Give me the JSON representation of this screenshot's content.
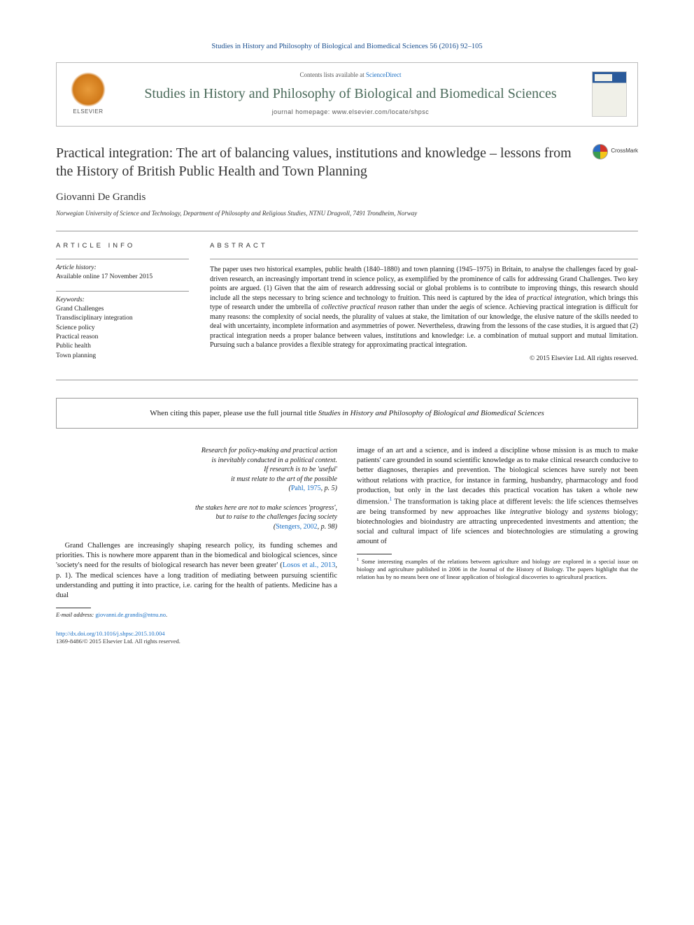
{
  "header": {
    "citation_line": "Studies in History and Philosophy of Biological and Biomedical Sciences 56 (2016) 92–105",
    "contents_prefix": "Contents lists available at ",
    "contents_link": "ScienceDirect",
    "journal_name": "Studies in History and Philosophy of Biological and Biomedical Sciences",
    "homepage_prefix": "journal homepage: ",
    "homepage_url": "www.elsevier.com/locate/shpsc",
    "elsevier_label": "ELSEVIER",
    "crossmark_label": "CrossMark"
  },
  "article": {
    "title": "Practical integration: The art of balancing values, institutions and knowledge – lessons from the History of British Public Health and Town Planning",
    "author": "Giovanni De Grandis",
    "affiliation": "Norwegian University of Science and Technology, Department of Philosophy and Religious Studies, NTNU Dragvoll, 7491 Trondheim, Norway"
  },
  "info": {
    "heading": "ARTICLE INFO",
    "history_label": "Article history:",
    "history_text": "Available online 17 November 2015",
    "keywords_label": "Keywords:",
    "keywords": [
      "Grand Challenges",
      "Transdisciplinary integration",
      "Science policy",
      "Practical reason",
      "Public health",
      "Town planning"
    ]
  },
  "abstract": {
    "heading": "ABSTRACT",
    "text_pre": "The paper uses two historical examples, public health (1840–1880) and town planning (1945–1975) in Britain, to analyse the challenges faced by goal-driven research, an increasingly important trend in science policy, as exemplified by the prominence of calls for addressing Grand Challenges. Two key points are argued. (1) Given that the aim of research addressing social or global problems is to contribute to improving things, this research should include all the steps necessary to bring science and technology to fruition. This need is captured by the idea of ",
    "ital1": "practical integration",
    "text_mid1": ", which brings this type of research under the umbrella of ",
    "ital2": "collective practical reason",
    "text_mid2": " rather than under the aegis of science. Achieving practical integration is difficult for many reasons: the complexity of social needs, the plurality of values at stake, the limitation of our knowledge, the elusive nature of the skills needed to deal with uncertainty, incomplete information and asymmetries of power. Nevertheless, drawing from the lessons of the case studies, it is argued that (2) practical integration needs a proper balance between values, institutions and knowledge: i.e. a combination of mutual support and mutual limitation. Pursuing such a balance provides a flexible strategy for approximating practical integration.",
    "copyright": "© 2015 Elsevier Ltd. All rights reserved."
  },
  "citation_notice": {
    "prefix": "When citing this paper, please use the full journal title ",
    "journal": "Studies in History and Philosophy of Biological and Biomedical Sciences"
  },
  "epigraphs": [
    {
      "lines": [
        "Research for policy-making and practical action",
        "is inevitably conducted in a political context.",
        "If research is to be 'useful'",
        "it must relate to the art of the possible"
      ],
      "cite_pre": "(",
      "cite_link": "Pahl, 1975",
      "cite_post": ", p. 5)"
    },
    {
      "lines": [
        "the stakes here are not to make sciences 'progress',",
        "but to raise to the challenges facing society"
      ],
      "cite_pre": "(",
      "cite_link": "Stengers, 2002",
      "cite_post": ", p. 98)"
    }
  ],
  "body": {
    "col1_p1_pre": "Grand Challenges are increasingly shaping research policy, its funding schemes and priorities. This is nowhere more apparent than in the biomedical and biological sciences, since 'society's need for the results of biological research has never been greater' (",
    "col1_p1_cite": "Losos et al., 2013",
    "col1_p1_post": ", p. 1). The medical sciences have a long tradition of mediating between pursuing scientific understanding and putting it into practice, i.e. caring for the health of patients. Medicine has a dual",
    "col2_p1_pre": "image of an art and a science, and is indeed a discipline whose mission is as much to make patients' care grounded in sound scientific knowledge as to make clinical research conducive to better diagnoses, therapies and prevention. The biological sciences have surely not been without relations with practice, for instance in farming, husbandry, pharmacology and food production, but only in the last decades this practical vocation has taken a whole new dimension.",
    "col2_p1_sup": "1",
    "col2_p1_mid": " The transformation is taking place at different levels: the life sciences themselves are being transformed by new approaches like ",
    "col2_p1_it1": "integrative",
    "col2_p1_mid2": " biology and ",
    "col2_p1_it2": "systems",
    "col2_p1_post": " biology; biotechnologies and bioindustry are attracting unprecedented investments and attention; the social and cultural impact of life sciences and biotechnologies are stimulating a growing amount of"
  },
  "footnotes": {
    "email_label": "E-mail address:",
    "email": "giovanni.de.grandis@ntnu.no",
    "note1_marker": "1",
    "note1_text": "Some interesting examples of the relations between agriculture and biology are explored in a special issue on biology and agriculture published in 2006 in the Journal of the History of Biology. The papers highlight that the relation has by no means been one of linear application of biological discoveries to agricultural practices."
  },
  "footer": {
    "doi": "http://dx.doi.org/10.1016/j.shpsc.2015.10.004",
    "issn_copyright": "1369-8486/© 2015 Elsevier Ltd. All rights reserved."
  },
  "colors": {
    "link": "#1a6fc4",
    "journal_green": "#4a6a5a",
    "header_blue": "#1a4f8f"
  }
}
